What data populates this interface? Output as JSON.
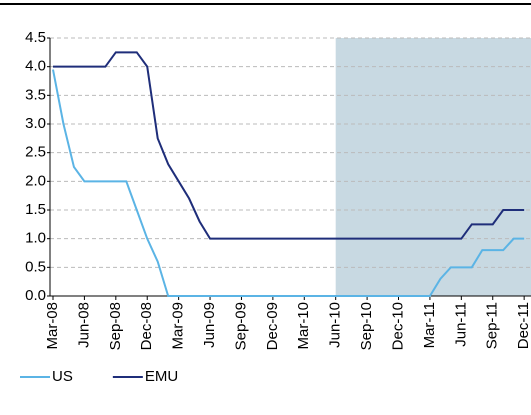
{
  "chart_data": {
    "type": "line",
    "categories": [
      "Mar-08",
      null,
      null,
      "Jun-08",
      null,
      null,
      "Sep-08",
      null,
      null,
      "Dec-08",
      null,
      null,
      "Mar-09",
      null,
      null,
      "Jun-09",
      null,
      null,
      "Sep-09",
      null,
      null,
      "Dec-09",
      null,
      null,
      "Mar-10",
      null,
      null,
      "Jun-10",
      null,
      null,
      "Sep-10",
      null,
      null,
      "Dec-10",
      null,
      null,
      "Mar-11",
      null,
      null,
      "Jun-11",
      null,
      null,
      "Sep-11",
      null,
      null,
      "Dec-11"
    ],
    "series": [
      {
        "name": "US",
        "color": "#5bb4e5",
        "values": [
          3.95,
          3.0,
          2.25,
          2.0,
          2.0,
          2.0,
          2.0,
          2.0,
          1.5,
          1.0,
          0.6,
          0,
          0,
          0,
          0,
          0,
          0,
          0,
          0,
          0,
          0,
          0,
          0,
          0,
          0,
          0,
          0,
          0,
          0,
          0,
          0,
          0,
          0,
          0,
          0,
          0,
          0,
          0.3,
          0.5,
          0.5,
          0.5,
          0.8,
          0.8,
          0.8,
          1.0,
          1.0
        ]
      },
      {
        "name": "EMU",
        "color": "#1f2e7a",
        "values": [
          4.0,
          4.0,
          4.0,
          4.0,
          4.0,
          4.0,
          4.25,
          4.25,
          4.25,
          4.0,
          2.75,
          2.3,
          2.0,
          1.7,
          1.3,
          1.0,
          1.0,
          1.0,
          1.0,
          1.0,
          1.0,
          1.0,
          1.0,
          1.0,
          1.0,
          1.0,
          1.0,
          1.0,
          1.0,
          1.0,
          1.0,
          1.0,
          1.0,
          1.0,
          1.0,
          1.0,
          1.0,
          1.0,
          1.0,
          1.0,
          1.25,
          1.25,
          1.25,
          1.5,
          1.5,
          1.5
        ]
      }
    ],
    "ylim": [
      0,
      4.5
    ],
    "yticks": [
      {
        "value": 0,
        "label": "0.0"
      },
      0.5,
      {
        "value": 1,
        "label": "1.0"
      },
      1.5,
      {
        "value": 2,
        "label": "2.0"
      },
      2.5,
      {
        "value": 3,
        "label": "3.0"
      },
      3.5,
      {
        "value": 4,
        "label": "4.0"
      },
      4.5
    ],
    "grid": true,
    "shaded_region": {
      "from": "Jun-10",
      "color": "#c8d9e2"
    },
    "legend": "bottom-left"
  }
}
